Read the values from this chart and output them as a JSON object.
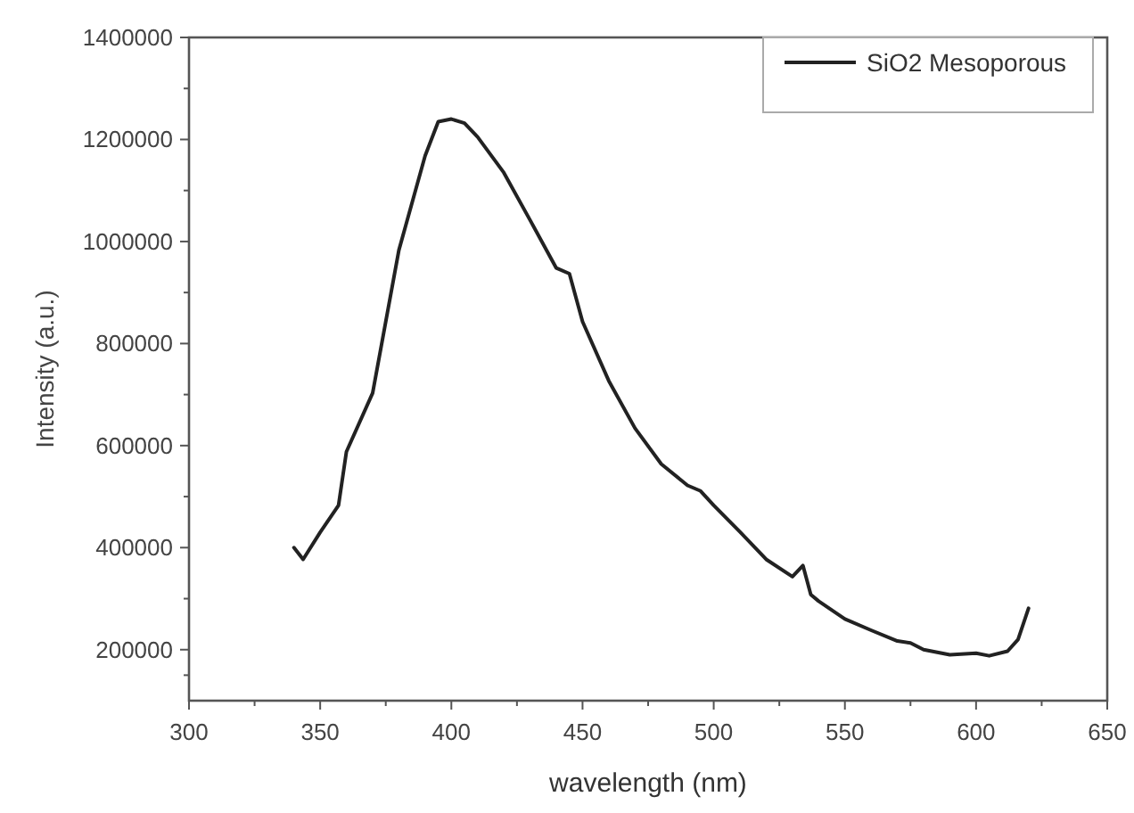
{
  "chart_data": {
    "type": "line",
    "xlabel": "wavelength (nm)",
    "ylabel": "Intensity (a.u.)",
    "xlim": [
      300,
      650
    ],
    "xticks": [
      300,
      350,
      400,
      450,
      500,
      550,
      600,
      650
    ],
    "ylim": [
      100000,
      1400000
    ],
    "yticks": [
      200000,
      400000,
      600000,
      800000,
      1000000,
      1200000,
      1400000
    ],
    "grid": false,
    "legend": "top right",
    "marker": "none",
    "line_style": "solid",
    "series": [
      {
        "name": "SiO2 Mesoporous",
        "color": "#222222",
        "x": [
          340,
          343.5,
          350,
          357,
          360,
          370,
          380,
          390,
          395,
          400,
          405,
          410,
          420,
          430,
          440,
          445,
          450,
          460,
          470,
          480,
          490,
          495,
          500,
          510,
          520,
          530,
          534,
          537,
          540,
          550,
          560,
          570,
          575,
          580,
          590,
          600,
          605,
          612,
          616,
          620
        ],
        "values": [
          400000,
          377000,
          430000,
          483000,
          588000,
          703000,
          983000,
          1168000,
          1235000,
          1240000,
          1232000,
          1205000,
          1135000,
          1042000,
          948000,
          937000,
          843000,
          727000,
          634000,
          564000,
          522000,
          511000,
          483000,
          431000,
          377000,
          343000,
          365000,
          308000,
          295000,
          260000,
          238000,
          217000,
          213000,
          200000,
          190000,
          193000,
          188000,
          197000,
          220000,
          281000
        ]
      }
    ]
  }
}
